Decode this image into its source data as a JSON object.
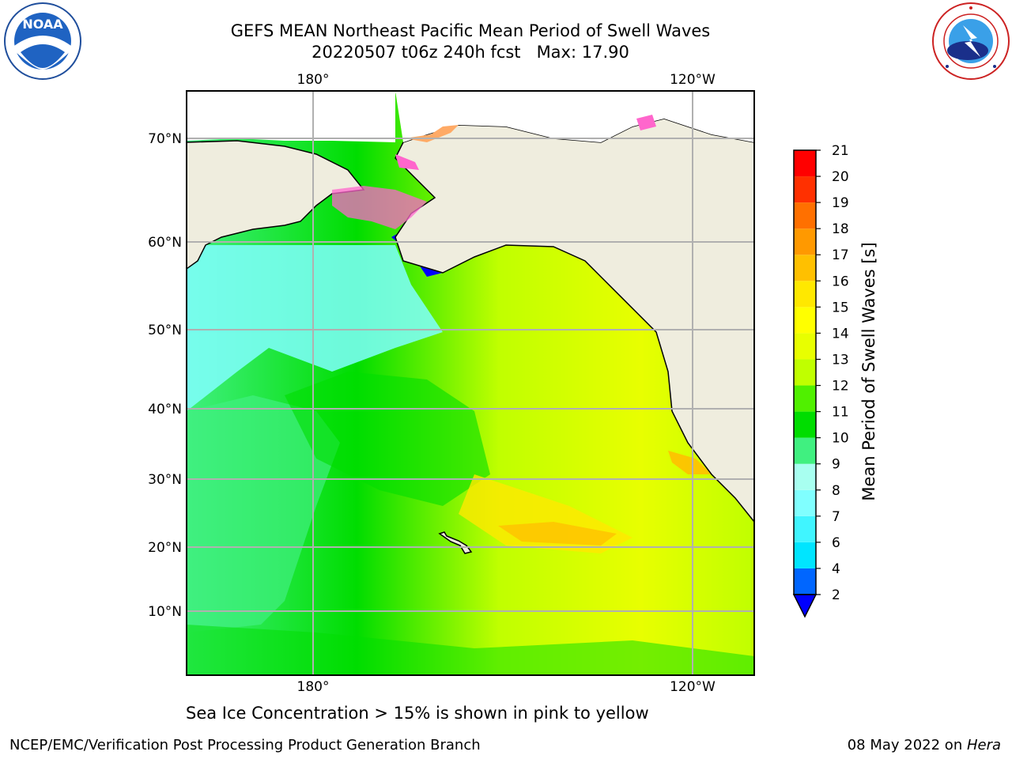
{
  "header": {
    "title_line1": "GEFS MEAN Northeast Pacific Mean Period of Swell Waves",
    "title_line2": "20220507 t06z 240h fcst   Max: 17.90"
  },
  "logos": {
    "left": {
      "icon": "noaa-logo-icon",
      "text": "NOAA"
    },
    "right": {
      "icon": "national-weather-service-logo-icon"
    }
  },
  "map": {
    "lon_ticks_top": [
      "180°",
      "120°W"
    ],
    "lon_ticks_bottom": [
      "180°",
      "120°W"
    ],
    "lat_ticks": [
      "70°N",
      "60°N",
      "50°N",
      "40°N",
      "30°N",
      "20°N",
      "10°N"
    ],
    "land_color": "#efedde",
    "grid_color": "#b0b0b0"
  },
  "colorbar": {
    "title": "Mean Period of Swell Waves [s]",
    "levels": [
      "2",
      "4",
      "6",
      "7",
      "8",
      "9",
      "10",
      "11",
      "12",
      "13",
      "14",
      "15",
      "16",
      "17",
      "18",
      "19",
      "20",
      "21"
    ],
    "colors": [
      "#0066ff",
      "#00e5ff",
      "#40f5ff",
      "#80ffff",
      "#a8fff0",
      "#40f080",
      "#00dd00",
      "#50f000",
      "#c0ff00",
      "#e8ff00",
      "#ffff00",
      "#ffe800",
      "#ffc000",
      "#ff9900",
      "#ff7000",
      "#ff3000",
      "#ff0000"
    ],
    "under_color": "#0000ff"
  },
  "caption": "Sea Ice Concentration > 15% is shown in pink to yellow",
  "footer": {
    "left": "NCEP/EMC/Verification Post Processing Product Generation Branch",
    "right_prefix": "08 May 2022 on ",
    "right_host": "Hera"
  }
}
